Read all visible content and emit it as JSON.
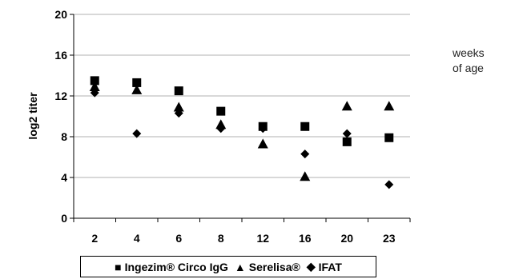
{
  "chart_data": {
    "type": "scatter",
    "ylabel": "log2 titer",
    "xlabel": "",
    "ylim": [
      0,
      20
    ],
    "yticks": [
      0,
      4,
      8,
      12,
      16,
      20
    ],
    "categories": [
      "2",
      "4",
      "6",
      "8",
      "12",
      "16",
      "20",
      "23"
    ],
    "grid": "horizontal",
    "legend_position": "bottom",
    "series": [
      {
        "name": "Ingezim® Circo IgG",
        "marker": "square",
        "values": [
          13.5,
          13.3,
          12.5,
          10.5,
          9.0,
          9.0,
          7.5,
          7.9
        ]
      },
      {
        "name": "Serelisa®",
        "marker": "triangle",
        "values": [
          12.9,
          12.6,
          10.9,
          9.2,
          7.3,
          4.1,
          11.0,
          11.0
        ]
      },
      {
        "name": "IFAT",
        "marker": "diamond",
        "values": [
          12.3,
          8.3,
          10.3,
          8.8,
          8.8,
          6.3,
          8.3,
          3.3
        ]
      }
    ]
  },
  "annotation": {
    "line1": "weeks",
    "line2": "of age"
  },
  "legend": {
    "items": [
      {
        "symbol": "■",
        "label": "Ingezim® Circo IgG"
      },
      {
        "symbol": "▲",
        "label": "Serelisa®"
      },
      {
        "symbol": "◆",
        "label": "IFAT"
      }
    ]
  },
  "colors": {
    "marker": "#000000",
    "gridline": "#b0b0b0",
    "axis": "#000000"
  }
}
